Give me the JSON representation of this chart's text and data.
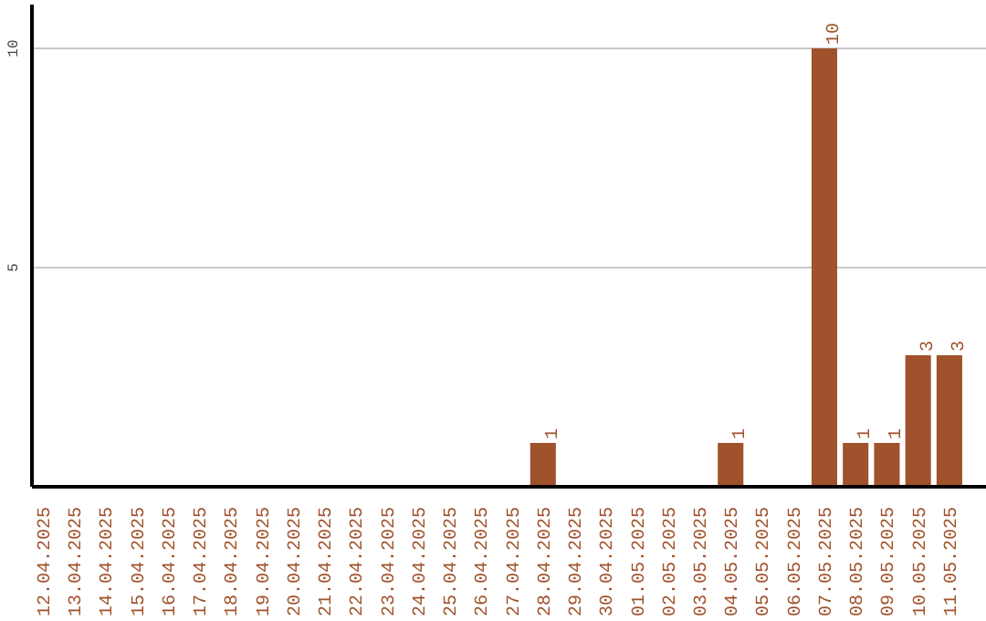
{
  "chart_data": {
    "type": "bar",
    "categories": [
      "12.04.2025",
      "13.04.2025",
      "14.04.2025",
      "15.04.2025",
      "16.04.2025",
      "17.04.2025",
      "18.04.2025",
      "19.04.2025",
      "20.04.2025",
      "21.04.2025",
      "22.04.2025",
      "23.04.2025",
      "24.04.2025",
      "25.04.2025",
      "26.04.2025",
      "27.04.2025",
      "28.04.2025",
      "29.04.2025",
      "30.04.2025",
      "01.05.2025",
      "02.05.2025",
      "03.05.2025",
      "04.05.2025",
      "05.05.2025",
      "06.05.2025",
      "07.05.2025",
      "08.05.2025",
      "09.05.2025",
      "10.05.2025",
      "11.05.2025"
    ],
    "values": [
      0,
      0,
      0,
      0,
      0,
      0,
      0,
      0,
      0,
      0,
      0,
      0,
      0,
      0,
      0,
      0,
      1,
      0,
      0,
      0,
      0,
      0,
      1,
      0,
      0,
      10,
      1,
      1,
      3,
      3
    ],
    "value_labels": [
      null,
      null,
      null,
      null,
      null,
      null,
      null,
      null,
      null,
      null,
      null,
      null,
      null,
      null,
      null,
      null,
      "1",
      null,
      null,
      null,
      null,
      null,
      "1",
      null,
      null,
      "10",
      "1",
      "1",
      "3",
      "3"
    ],
    "color": "#a0522d",
    "ylim": [
      0,
      11
    ],
    "yticks": [
      5,
      10
    ],
    "grid": "y"
  }
}
